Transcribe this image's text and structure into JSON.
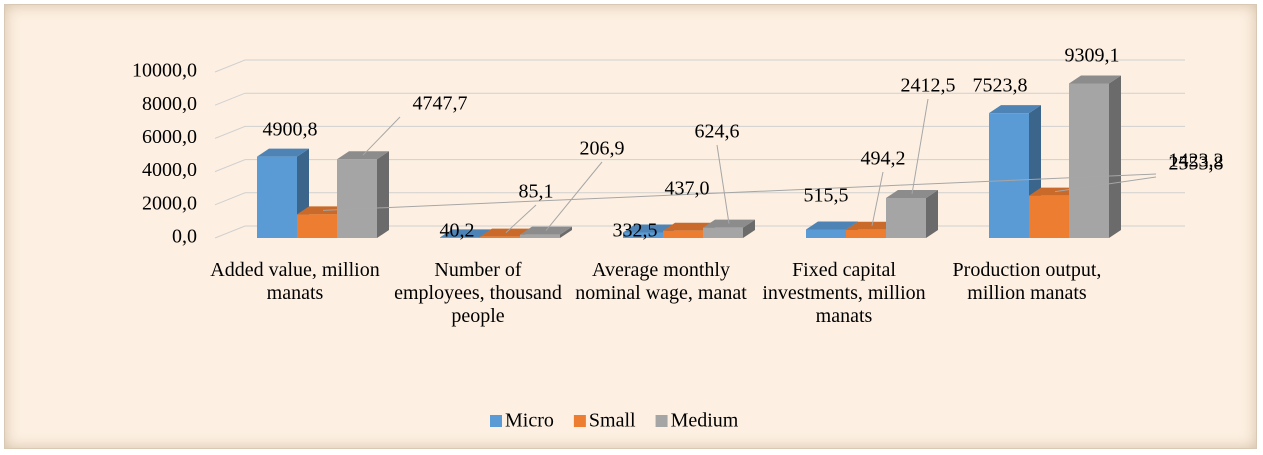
{
  "chart_data": {
    "type": "bar3d",
    "categories": [
      "Added value, million manats",
      "Number of employees, thousand people",
      "Average monthly nominal wage, manat",
      "Fixed capital investments, million manats",
      "Production output, million manats"
    ],
    "series": [
      {
        "name": "Micro",
        "color": "#5b9bd5",
        "values": [
          4900.8,
          40.2,
          332.5,
          515.5,
          7523.8
        ],
        "value_labels": [
          "4900,8",
          "40,2",
          "332,5",
          "515,5",
          "7523,8"
        ]
      },
      {
        "name": "Small",
        "color": "#ed7d31",
        "values": [
          1423.2,
          85.1,
          437.0,
          494.2,
          2553.8
        ],
        "value_labels": [
          "1423,2",
          "85,1",
          "437,0",
          "494,2",
          "2553,8"
        ]
      },
      {
        "name": "Medium",
        "color": "#a5a5a5",
        "values": [
          4747.7,
          206.9,
          624.6,
          2412.5,
          9309.1
        ],
        "value_labels": [
          "4747,7",
          "206,9",
          "624,6",
          "2412,5",
          "9309,1"
        ]
      }
    ],
    "ylim": [
      0,
      10000
    ],
    "yticks": [
      {
        "value": 0,
        "label": "0,0"
      },
      {
        "value": 2000,
        "label": "2000,0"
      },
      {
        "value": 4000,
        "label": "4000,0"
      },
      {
        "value": 6000,
        "label": "6000,0"
      },
      {
        "value": 8000,
        "label": "8000,0"
      },
      {
        "value": 10000,
        "label": "10000,0"
      }
    ],
    "grid": true,
    "legend": "bottom"
  }
}
